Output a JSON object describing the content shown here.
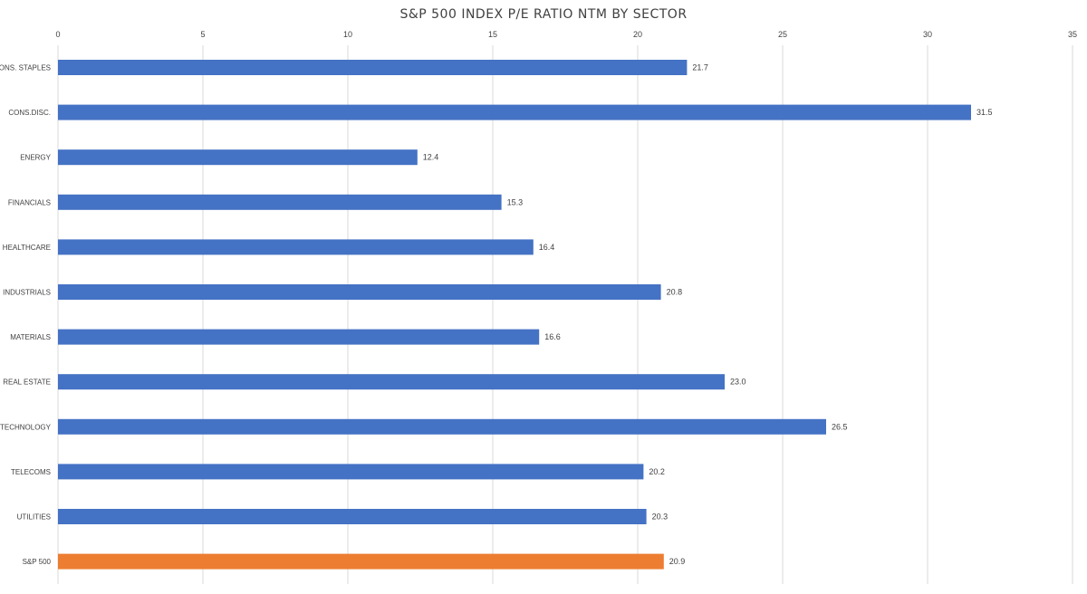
{
  "chart_data": {
    "type": "bar",
    "orientation": "horizontal",
    "title": "S&P 500 INDEX P/E RATIO NTM BY SECTOR",
    "xlabel": "",
    "ylabel": "",
    "xlim": [
      0,
      35
    ],
    "x_ticks": [
      0,
      5,
      10,
      15,
      20,
      25,
      30,
      35
    ],
    "x_axis_position": "top",
    "grid": true,
    "legend": "none",
    "categories": [
      "CONS. STAPLES",
      "CONS.DISC.",
      "ENERGY",
      "FINANCIALS",
      "HEALTHCARE",
      "INDUSTRIALS",
      "MATERIALS",
      "REAL ESTATE",
      "TECHNOLOGY",
      "TELECOMS",
      "UTILITIES",
      "S&P 500"
    ],
    "values": [
      21.7,
      31.5,
      12.4,
      15.3,
      16.4,
      20.8,
      16.6,
      23.0,
      26.5,
      20.2,
      20.3,
      20.9
    ],
    "data_labels": [
      "21.7",
      "31.5",
      "12.4",
      "15.3",
      "16.4",
      "20.8",
      "16.6",
      "23.0",
      "26.5",
      "20.2",
      "20.3",
      "20.9"
    ],
    "colors": {
      "default": "#4472C4",
      "highlight": "#ED7D31",
      "highlight_category": "S&P 500",
      "grid": "#d9d9d9",
      "text": "#404040"
    }
  }
}
